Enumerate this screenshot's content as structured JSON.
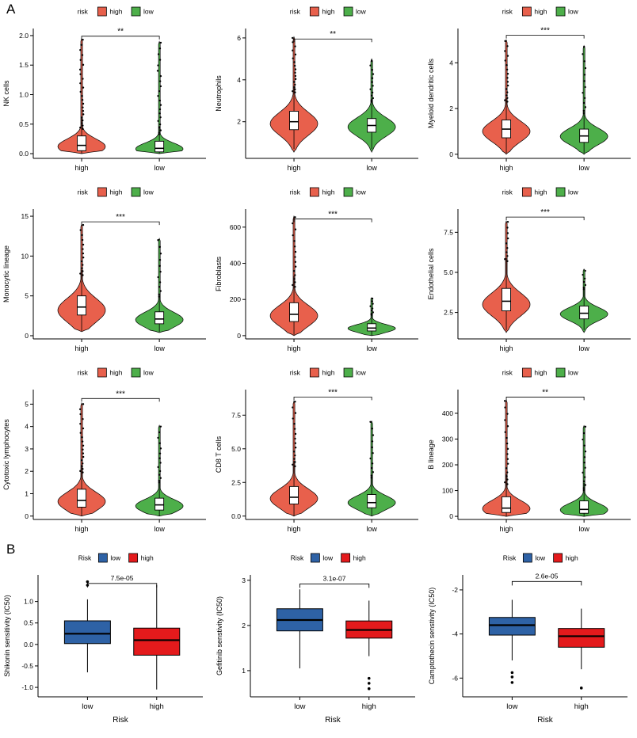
{
  "figure": {
    "background": "#ffffff"
  },
  "chart_data": {
    "panelA": {
      "label": "A",
      "type": "violin",
      "categories": [
        "high",
        "low"
      ],
      "legend": {
        "title": "risk",
        "items": [
          {
            "label": "high",
            "color": "#E8604C"
          },
          {
            "label": "low",
            "color": "#4DAF4A"
          }
        ]
      },
      "charts": [
        {
          "ylabel": "NK cells",
          "ylim": [
            -0.08,
            2.12
          ],
          "yticks": [
            0,
            0.5,
            1.0,
            1.5,
            2.0
          ],
          "ytick_labels": [
            "0.0",
            "0.5",
            "1.0",
            "1.5",
            "2.0"
          ],
          "significance": "**",
          "sig_y": 1.99,
          "groups": [
            {
              "name": "high",
              "violin_min": 0,
              "violin_max": 1.95,
              "mode": 0.12,
              "sigma": 0.13,
              "median": 0.14,
              "q1": 0.05,
              "q3": 0.3,
              "whisker_low": 0.0,
              "whisker_high": 0.62,
              "outlier_from": 0.42,
              "outlier_to": 1.93,
              "outlier_count": 24
            },
            {
              "name": "low",
              "violin_min": 0,
              "violin_max": 1.9,
              "mode": 0.08,
              "sigma": 0.1,
              "median": 0.09,
              "q1": 0.03,
              "q3": 0.21,
              "whisker_low": 0.0,
              "whisker_high": 0.47,
              "outlier_from": 0.33,
              "outlier_to": 1.88,
              "outlier_count": 22
            }
          ]
        },
        {
          "ylabel": "Neutrophils",
          "ylim": [
            0.25,
            6.45
          ],
          "yticks": [
            2,
            4,
            6
          ],
          "ytick_labels": [
            "2",
            "4",
            "6"
          ],
          "significance": "**",
          "sig_y": 5.95,
          "groups": [
            {
              "name": "high",
              "violin_min": 0.55,
              "violin_max": 6.05,
              "mode": 1.9,
              "sigma": 0.55,
              "median": 2.0,
              "q1": 1.62,
              "q3": 2.5,
              "whisker_low": 0.7,
              "whisker_high": 3.7,
              "outlier_from": 3.4,
              "outlier_to": 6.0,
              "outlier_count": 18
            },
            {
              "name": "low",
              "violin_min": 0.55,
              "violin_max": 5.0,
              "mode": 1.75,
              "sigma": 0.45,
              "median": 1.82,
              "q1": 1.5,
              "q3": 2.15,
              "whisker_low": 0.7,
              "whisker_high": 3.1,
              "outlier_from": 2.95,
              "outlier_to": 4.9,
              "outlier_count": 13
            }
          ]
        },
        {
          "ylabel": "Myeloid dendritic cells",
          "ylim": [
            -0.18,
            5.5
          ],
          "yticks": [
            0,
            2,
            4
          ],
          "ytick_labels": [
            "0",
            "2",
            "4"
          ],
          "significance": "***",
          "sig_y": 5.2,
          "groups": [
            {
              "name": "high",
              "violin_min": 0,
              "violin_max": 5.0,
              "mode": 1.0,
              "sigma": 0.45,
              "median": 1.1,
              "q1": 0.72,
              "q3": 1.5,
              "whisker_low": 0.05,
              "whisker_high": 2.45,
              "outlier_from": 2.3,
              "outlier_to": 4.95,
              "outlier_count": 17
            },
            {
              "name": "low",
              "violin_min": 0,
              "violin_max": 4.75,
              "mode": 0.78,
              "sigma": 0.36,
              "median": 0.8,
              "q1": 0.52,
              "q3": 1.1,
              "whisker_low": 0.05,
              "whisker_high": 1.85,
              "outlier_from": 1.8,
              "outlier_to": 4.7,
              "outlier_count": 13
            }
          ]
        },
        {
          "ylabel": "Monocytic lineage",
          "ylim": [
            -0.4,
            15.9
          ],
          "yticks": [
            0,
            5,
            10,
            15
          ],
          "ytick_labels": [
            "0",
            "5",
            "10",
            "15"
          ],
          "significance": "***",
          "sig_y": 14.3,
          "groups": [
            {
              "name": "high",
              "violin_min": 0.5,
              "violin_max": 14.0,
              "mode": 3.2,
              "sigma": 1.5,
              "median": 3.6,
              "q1": 2.6,
              "q3": 5.0,
              "whisker_low": 0.6,
              "whisker_high": 8.3,
              "outlier_from": 7.6,
              "outlier_to": 13.9,
              "outlier_count": 14
            },
            {
              "name": "low",
              "violin_min": 0.4,
              "violin_max": 12.2,
              "mode": 2.0,
              "sigma": 0.95,
              "median": 2.1,
              "q1": 1.5,
              "q3": 3.0,
              "whisker_low": 0.5,
              "whisker_high": 5.2,
              "outlier_from": 4.9,
              "outlier_to": 12.0,
              "outlier_count": 12
            }
          ]
        },
        {
          "ylabel": "Fibroblasts",
          "ylim": [
            -18,
            700
          ],
          "yticks": [
            0,
            200,
            400,
            600
          ],
          "ytick_labels": [
            "0",
            "200",
            "400",
            "600"
          ],
          "significance": "***",
          "sig_y": 645,
          "groups": [
            {
              "name": "high",
              "violin_min": 0,
              "violin_max": 660,
              "mode": 110,
              "sigma": 58,
              "median": 118,
              "q1": 78,
              "q3": 182,
              "whisker_low": 4,
              "whisker_high": 330,
              "outlier_from": 270,
              "outlier_to": 655,
              "outlier_count": 16
            },
            {
              "name": "low",
              "violin_min": 0,
              "violin_max": 210,
              "mode": 40,
              "sigma": 22,
              "median": 42,
              "q1": 26,
              "q3": 66,
              "whisker_low": 2,
              "whisker_high": 122,
              "outlier_from": 115,
              "outlier_to": 205,
              "outlier_count": 9
            }
          ]
        },
        {
          "ylabel": "Endothelial cells",
          "ylim": [
            0.85,
            8.95
          ],
          "yticks": [
            2.5,
            5.0,
            7.5
          ],
          "ytick_labels": [
            "2.5",
            "5.0",
            "7.5"
          ],
          "significance": "***",
          "sig_y": 8.45,
          "groups": [
            {
              "name": "high",
              "violin_min": 1.25,
              "violin_max": 8.2,
              "mode": 3.0,
              "sigma": 0.72,
              "median": 3.2,
              "q1": 2.6,
              "q3": 4.0,
              "whisker_low": 1.4,
              "whisker_high": 5.9,
              "outlier_from": 5.7,
              "outlier_to": 8.15,
              "outlier_count": 10
            },
            {
              "name": "low",
              "violin_min": 1.25,
              "violin_max": 5.2,
              "mode": 2.4,
              "sigma": 0.42,
              "median": 2.45,
              "q1": 2.1,
              "q3": 2.9,
              "whisker_low": 1.4,
              "whisker_high": 4.0,
              "outlier_from": 3.95,
              "outlier_to": 5.1,
              "outlier_count": 7
            }
          ]
        },
        {
          "ylabel": "Cytotoxic lymphocytes",
          "ylim": [
            -0.15,
            5.65
          ],
          "yticks": [
            0,
            1,
            2,
            3,
            4,
            5
          ],
          "ytick_labels": [
            "0",
            "1",
            "2",
            "3",
            "4",
            "5"
          ],
          "significance": "***",
          "sig_y": 5.25,
          "groups": [
            {
              "name": "high",
              "violin_min": 0,
              "violin_max": 5.05,
              "mode": 0.65,
              "sigma": 0.42,
              "median": 0.7,
              "q1": 0.4,
              "q3": 1.2,
              "whisker_low": 0,
              "whisker_high": 2.3,
              "outlier_from": 1.95,
              "outlier_to": 5.0,
              "outlier_count": 19
            },
            {
              "name": "low",
              "violin_min": 0,
              "violin_max": 4.05,
              "mode": 0.45,
              "sigma": 0.3,
              "median": 0.5,
              "q1": 0.27,
              "q3": 0.8,
              "whisker_low": 0,
              "whisker_high": 1.6,
              "outlier_from": 1.5,
              "outlier_to": 4.0,
              "outlier_count": 14
            }
          ]
        },
        {
          "ylabel": "CD8 T cells",
          "ylim": [
            -0.25,
            9.4
          ],
          "yticks": [
            0,
            2.5,
            5.0,
            7.5
          ],
          "ytick_labels": [
            "0.0",
            "2.5",
            "5.0",
            "7.5"
          ],
          "significance": "***",
          "sig_y": 8.85,
          "groups": [
            {
              "name": "high",
              "violin_min": 0,
              "violin_max": 8.55,
              "mode": 1.3,
              "sigma": 0.72,
              "median": 1.4,
              "q1": 0.9,
              "q3": 2.2,
              "whisker_low": 0,
              "whisker_high": 4.1,
              "outlier_from": 3.7,
              "outlier_to": 8.5,
              "outlier_count": 16
            },
            {
              "name": "low",
              "violin_min": 0,
              "violin_max": 7.05,
              "mode": 1.0,
              "sigma": 0.52,
              "median": 1.0,
              "q1": 0.62,
              "q3": 1.6,
              "whisker_low": 0,
              "whisker_high": 3.0,
              "outlier_from": 2.85,
              "outlier_to": 7.0,
              "outlier_count": 12
            }
          ]
        },
        {
          "ylabel": "B lineage",
          "ylim": [
            -12,
            492
          ],
          "yticks": [
            0,
            100,
            200,
            300,
            400
          ],
          "ytick_labels": [
            "0",
            "100",
            "200",
            "300",
            "400"
          ],
          "significance": "**",
          "sig_y": 463,
          "groups": [
            {
              "name": "high",
              "violin_min": 0,
              "violin_max": 452,
              "mode": 30,
              "sigma": 32,
              "median": 32,
              "q1": 15,
              "q3": 76,
              "whisker_low": 0,
              "whisker_high": 165,
              "outlier_from": 125,
              "outlier_to": 448,
              "outlier_count": 18
            },
            {
              "name": "low",
              "violin_min": 0,
              "violin_max": 352,
              "mode": 25,
              "sigma": 26,
              "median": 27,
              "q1": 12,
              "q3": 60,
              "whisker_low": 0,
              "whisker_high": 130,
              "outlier_from": 102,
              "outlier_to": 348,
              "outlier_count": 14
            }
          ]
        }
      ]
    },
    "panelB": {
      "label": "B",
      "type": "box",
      "categories": [
        "low",
        "high"
      ],
      "xlabel": "Risk",
      "legend": {
        "title": "Risk",
        "items": [
          {
            "label": "low",
            "color": "#2E62A6"
          },
          {
            "label": "high",
            "color": "#E41A1C"
          }
        ]
      },
      "charts": [
        {
          "ylabel": "Shikonin sensitivity (IC50)",
          "ylim": [
            -1.22,
            1.62
          ],
          "yticks": [
            -1.0,
            -0.5,
            0,
            0.5,
            1.0
          ],
          "ytick_labels": [
            "-1.0",
            "-0.5",
            "0.0",
            "0.5",
            "1.0"
          ],
          "pvalue": "7.5e-05",
          "bracket_y": 1.42,
          "groups": [
            {
              "name": "low",
              "median": 0.25,
              "q1": 0.02,
              "q3": 0.55,
              "whisker_low": -0.65,
              "whisker_high": 1.05,
              "outliers": [
                1.38,
                1.46
              ]
            },
            {
              "name": "high",
              "median": 0.1,
              "q1": -0.25,
              "q3": 0.38,
              "whisker_low": -1.05,
              "whisker_high": 1.38,
              "outliers": []
            }
          ]
        },
        {
          "ylabel": "Gefitinib senstivity (IC50)",
          "ylim": [
            0.42,
            3.12
          ],
          "yticks": [
            1,
            2,
            3
          ],
          "ytick_labels": [
            "1",
            "2",
            "3"
          ],
          "pvalue": "3.1e-07",
          "bracket_y": 2.92,
          "groups": [
            {
              "name": "low",
              "median": 2.12,
              "q1": 1.88,
              "q3": 2.37,
              "whisker_low": 1.05,
              "whisker_high": 2.8,
              "outliers": []
            },
            {
              "name": "high",
              "median": 1.9,
              "q1": 1.72,
              "q3": 2.1,
              "whisker_low": 1.32,
              "whisker_high": 2.55,
              "outliers": [
                0.83,
                0.72,
                0.6
              ]
            }
          ]
        },
        {
          "ylabel": "Camptothecin senstivity (IC50)",
          "ylim": [
            -6.85,
            -1.32
          ],
          "yticks": [
            -6,
            -4,
            -2
          ],
          "ytick_labels": [
            "-6",
            "-4",
            "-2"
          ],
          "pvalue": "2.6e-05",
          "bracket_y": -1.62,
          "groups": [
            {
              "name": "low",
              "median": -3.6,
              "q1": -4.05,
              "q3": -3.25,
              "whisker_low": -5.2,
              "whisker_high": -2.45,
              "outliers": [
                -5.75,
                -5.95,
                -6.2
              ]
            },
            {
              "name": "high",
              "median": -4.1,
              "q1": -4.6,
              "q3": -3.75,
              "whisker_low": -5.6,
              "whisker_high": -2.85,
              "outliers": [
                -6.45
              ]
            }
          ]
        }
      ]
    }
  }
}
